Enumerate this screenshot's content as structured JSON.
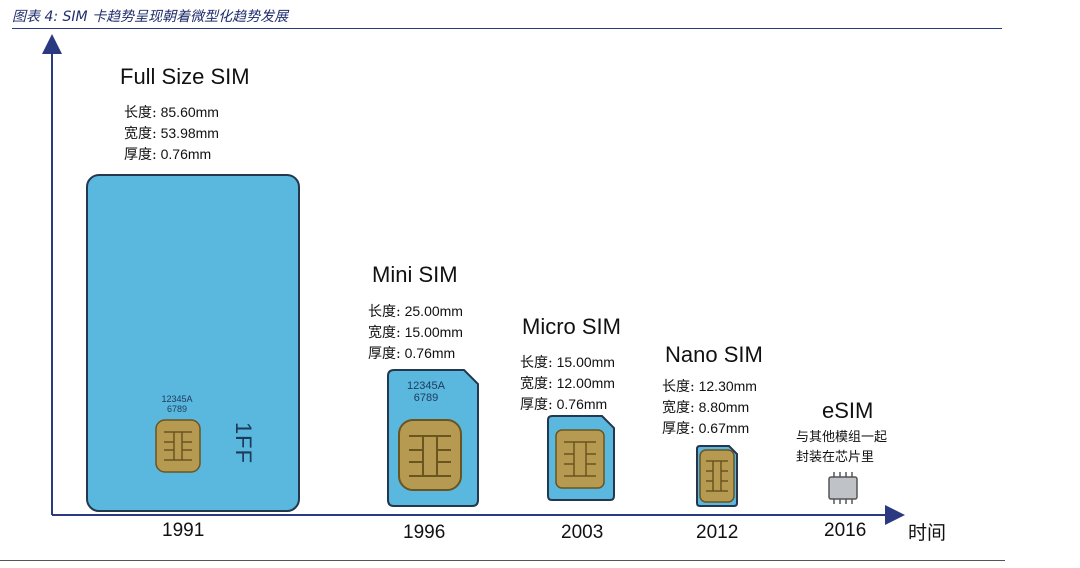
{
  "figure_title": "图表 4: SIM 卡趋势呈现朝着微型化趋势发展",
  "axis": {
    "x_label": "时间"
  },
  "cards": [
    {
      "name": "Full Size SIM",
      "year": "1991",
      "specs": [
        {
          "k": "长度:",
          "v": "85.60mm"
        },
        {
          "k": "宽度:",
          "v": "53.98mm"
        },
        {
          "k": "厚度:",
          "v": "0.76mm"
        }
      ],
      "code_line1": "12345A",
      "code_line2": "6789",
      "side_label": "1FF"
    },
    {
      "name": "Mini SIM",
      "year": "1996",
      "specs": [
        {
          "k": "长度:",
          "v": "25.00mm"
        },
        {
          "k": "宽度:",
          "v": "15.00mm"
        },
        {
          "k": "厚度:",
          "v": "0.76mm"
        }
      ],
      "code_line1": "12345A",
      "code_line2": "6789"
    },
    {
      "name": "Micro SIM",
      "year": "2003",
      "specs": [
        {
          "k": "长度:",
          "v": "15.00mm"
        },
        {
          "k": "宽度:",
          "v": "12.00mm"
        },
        {
          "k": "厚度:",
          "v": "0.76mm"
        }
      ]
    },
    {
      "name": "Nano SIM",
      "year": "2012",
      "specs": [
        {
          "k": "长度:",
          "v": "12.30mm"
        },
        {
          "k": "宽度:",
          "v": "8.80mm"
        },
        {
          "k": "厚度:",
          "v": "0.67mm"
        }
      ]
    },
    {
      "name": "eSIM",
      "year": "2016",
      "note_line1": "与其他模组一起",
      "note_line2": "封装在芯片里"
    }
  ],
  "colors": {
    "card_fill": "#5ab7de",
    "card_border": "#23384f",
    "chip_gold": "#b79a52",
    "axis": "#2b3a80"
  }
}
